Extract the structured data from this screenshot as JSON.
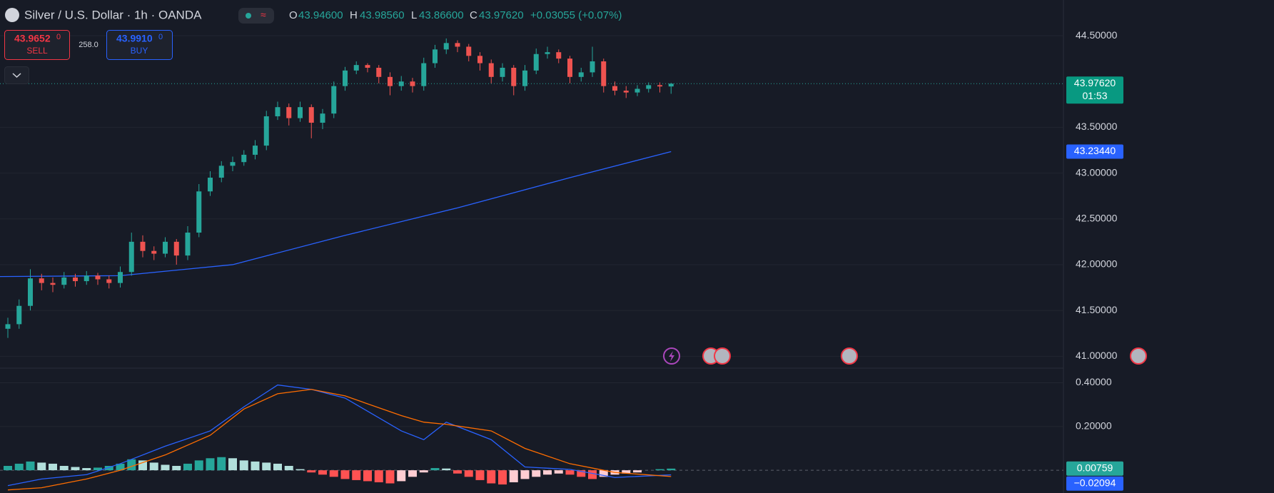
{
  "header": {
    "symbol": "Silver / U.S. Dollar · 1h · OANDA",
    "ohlc": [
      {
        "key": "O",
        "value": "43.94600"
      },
      {
        "key": "H",
        "value": "43.98560"
      },
      {
        "key": "L",
        "value": "43.86600"
      },
      {
        "key": "C",
        "value": "43.97620"
      }
    ],
    "change": "+0.03055 (+0.07%)"
  },
  "trade": {
    "sell_price": "43.9652",
    "sell_pip": "0",
    "sell_label": "SELL",
    "spread": "258.0",
    "buy_price": "43.9910",
    "buy_pip": "0",
    "buy_label": "BUY"
  },
  "chart_data": [
    {
      "type": "candlestick",
      "ylim": [
        40.87,
        44.89
      ],
      "grid": true,
      "yticks": [
        {
          "value": 44.5,
          "label": "44.50000"
        },
        {
          "value": 43.5,
          "label": "43.50000"
        },
        {
          "value": 43,
          "label": "43.00000"
        },
        {
          "value": 42.5,
          "label": "42.50000"
        },
        {
          "value": 42,
          "label": "42.00000"
        },
        {
          "value": 41.5,
          "label": "41.50000"
        },
        {
          "value": 41,
          "label": "41.00000"
        }
      ],
      "up_color": "#26a69a",
      "down_color": "#ef5350",
      "candles": {
        "open": [
          41.3,
          41.35,
          41.55,
          41.85,
          41.8,
          41.78,
          41.86,
          41.82,
          41.88,
          41.84,
          41.8,
          41.92,
          42.25,
          42.15,
          42.12,
          42.25,
          42.1,
          42.35,
          42.8,
          42.95,
          43.08,
          43.12,
          43.2,
          43.3,
          43.62,
          43.72,
          43.6,
          43.72,
          43.55,
          43.65,
          43.95,
          44.12,
          44.18,
          44.15,
          44.05,
          43.95,
          44.0,
          43.95,
          44.2,
          44.35,
          44.42,
          44.38,
          44.28,
          44.2,
          44.05,
          44.15,
          43.95,
          44.12,
          44.3,
          44.32,
          44.25,
          44.05,
          44.1,
          44.22,
          43.95,
          43.9,
          43.88,
          43.92,
          43.96,
          43.946
        ],
        "high": [
          41.42,
          41.62,
          41.95,
          41.9,
          41.86,
          41.92,
          41.9,
          41.93,
          41.91,
          41.88,
          41.98,
          42.35,
          42.32,
          42.2,
          42.3,
          42.28,
          42.42,
          42.88,
          43.02,
          43.13,
          43.18,
          43.25,
          43.36,
          43.68,
          43.78,
          43.76,
          43.78,
          43.75,
          43.7,
          44.0,
          44.16,
          44.22,
          44.2,
          44.18,
          44.1,
          44.06,
          44.04,
          44.26,
          44.4,
          44.47,
          44.45,
          44.41,
          44.32,
          44.24,
          44.2,
          44.18,
          44.18,
          44.36,
          44.38,
          44.35,
          44.28,
          44.15,
          44.38,
          44.25,
          44.0,
          43.95,
          43.96,
          43.99,
          43.99,
          43.9856
        ],
        "low": [
          41.2,
          41.3,
          41.5,
          41.72,
          41.7,
          41.74,
          41.76,
          41.78,
          41.78,
          41.74,
          41.75,
          41.88,
          42.08,
          42.05,
          42.08,
          42.0,
          42.05,
          42.3,
          42.75,
          42.9,
          43.02,
          43.08,
          43.15,
          43.25,
          43.58,
          43.52,
          43.56,
          43.38,
          43.48,
          43.6,
          43.9,
          44.08,
          44.1,
          43.98,
          43.85,
          43.9,
          43.88,
          43.9,
          44.15,
          44.3,
          44.32,
          44.22,
          44.12,
          43.98,
          44.0,
          43.85,
          43.9,
          44.08,
          44.25,
          44.2,
          43.98,
          44.0,
          44.05,
          43.88,
          43.85,
          43.82,
          43.84,
          43.88,
          43.88,
          43.866
        ],
        "close": [
          41.35,
          41.55,
          41.85,
          41.8,
          41.78,
          41.86,
          41.82,
          41.88,
          41.84,
          41.8,
          41.92,
          42.25,
          42.15,
          42.12,
          42.25,
          42.1,
          42.35,
          42.8,
          42.95,
          43.08,
          43.12,
          43.2,
          43.3,
          43.62,
          43.72,
          43.6,
          43.72,
          43.55,
          43.65,
          43.95,
          44.12,
          44.18,
          44.15,
          44.05,
          43.95,
          44.0,
          43.95,
          44.2,
          44.35,
          44.42,
          44.38,
          44.28,
          44.2,
          44.05,
          44.15,
          43.95,
          44.12,
          44.3,
          44.32,
          44.25,
          44.05,
          44.1,
          44.22,
          43.95,
          43.9,
          43.88,
          43.92,
          43.96,
          43.946,
          43.9762
        ]
      },
      "ma": {
        "color": "#2962ff",
        "x": [
          -0.7,
          10,
          20,
          30,
          40,
          50,
          59
        ],
        "values": [
          41.87,
          41.88,
          42.0,
          42.32,
          42.62,
          42.95,
          43.2344
        ]
      },
      "last_price": {
        "value": 43.9762,
        "label": "43.97620"
      },
      "countdown": "01:53",
      "ma_last": {
        "value": 43.2344,
        "label": "43.23440"
      }
    },
    {
      "type": "macd",
      "ylim": [
        -0.104,
        0.467
      ],
      "grid": true,
      "yticks": [
        {
          "value": 0.4,
          "label": "0.40000"
        },
        {
          "value": 0.2,
          "label": "0.20000"
        }
      ],
      "histogram": {
        "colors": [
          "#26a69a",
          "#b2dfdb",
          "#ff5252",
          "#ffcdd2"
        ],
        "values": [
          0.02,
          0.03,
          0.04,
          0.035,
          0.03,
          0.02,
          0.015,
          0.01,
          0.012,
          0.02,
          0.03,
          0.05,
          0.045,
          0.035,
          0.025,
          0.02,
          0.03,
          0.045,
          0.055,
          0.06,
          0.055,
          0.045,
          0.04,
          0.035,
          0.03,
          0.02,
          0.005,
          -0.01,
          -0.02,
          -0.03,
          -0.04,
          -0.045,
          -0.05,
          -0.055,
          -0.06,
          -0.05,
          -0.03,
          -0.01,
          0.01,
          0.008,
          -0.015,
          -0.03,
          -0.045,
          -0.06,
          -0.065,
          -0.055,
          -0.04,
          -0.03,
          -0.02,
          -0.015,
          -0.02,
          -0.03,
          -0.04,
          -0.03,
          -0.02,
          -0.015,
          -0.01,
          0.0,
          0.005,
          0.00759
        ]
      },
      "macd": {
        "color": "#2962ff",
        "x": [
          0,
          3,
          7,
          10,
          14,
          18,
          21,
          24,
          27,
          30,
          35,
          37,
          39,
          43,
          46,
          50,
          54,
          59
        ],
        "values": [
          -0.07,
          -0.04,
          -0.02,
          0.03,
          0.11,
          0.18,
          0.29,
          0.39,
          0.37,
          0.33,
          0.18,
          0.14,
          0.22,
          0.14,
          0.015,
          0.004,
          -0.033,
          -0.02094
        ]
      },
      "signal": {
        "color": "#ff6d00",
        "x": [
          0,
          3,
          7,
          10,
          14,
          18,
          21,
          24,
          27,
          30,
          35,
          37,
          39,
          43,
          46,
          50,
          54,
          59
        ],
        "values": [
          -0.09,
          -0.08,
          -0.04,
          0.0,
          0.07,
          0.16,
          0.28,
          0.35,
          0.37,
          0.34,
          0.25,
          0.22,
          0.21,
          0.18,
          0.1,
          0.03,
          -0.01,
          -0.02853
        ]
      },
      "hist_last": {
        "value": 0.00759,
        "label": "0.00759"
      },
      "macd_last": {
        "value": -0.02094,
        "label": "−0.02094"
      }
    }
  ]
}
